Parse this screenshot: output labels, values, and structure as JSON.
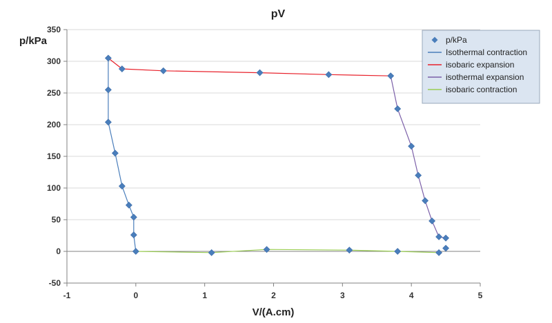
{
  "chart_data": {
    "type": "scatter",
    "title": "pV",
    "xlabel": "V/(A.cm)",
    "ylabel": "p/kPa",
    "xlim": [
      -1,
      5
    ],
    "ylim": [
      -50,
      350
    ],
    "x_ticks": [
      "-1",
      "0",
      "1",
      "2",
      "3",
      "4",
      "5"
    ],
    "y_ticks": [
      "-50",
      "0",
      "50",
      "100",
      "150",
      "200",
      "250",
      "300",
      "350"
    ],
    "grid": "horizontal",
    "legend_position": "top-right",
    "marker_color": "#4a7ebb",
    "points": {
      "name": "p/kPa",
      "x": [
        -0.4,
        -0.2,
        0.4,
        1.8,
        2.8,
        3.7,
        -0.4,
        -0.4,
        -0.3,
        -0.2,
        -0.1,
        -0.03,
        -0.03,
        0.0,
        1.1,
        1.9,
        3.1,
        3.8,
        4.4,
        4.5,
        4.5,
        4.4,
        4.3,
        4.2,
        4.1,
        4.0,
        3.8
      ],
      "y": [
        305,
        288,
        285,
        282,
        279,
        277,
        255,
        204,
        155,
        103,
        73,
        54,
        26,
        0,
        -2,
        3,
        2,
        0,
        -2,
        5,
        21,
        23,
        48,
        80,
        120,
        166,
        225
      ]
    },
    "series": [
      {
        "name": "Isothermal contraction",
        "color": "#4a7ebb",
        "x": [
          -0.4,
          -0.4,
          -0.4,
          -0.3,
          -0.2,
          -0.1,
          -0.03,
          -0.03,
          0.0
        ],
        "y": [
          305,
          255,
          204,
          155,
          103,
          73,
          54,
          26,
          0
        ]
      },
      {
        "name": "isobaric expansion",
        "color": "#e8202a",
        "x": [
          -0.4,
          -0.2,
          0.4,
          1.8,
          2.8,
          3.7
        ],
        "y": [
          305,
          288,
          285,
          282,
          279,
          277
        ]
      },
      {
        "name": "isothermal expansion",
        "color": "#7b5fa8",
        "x": [
          3.7,
          3.8,
          4.0,
          4.1,
          4.2,
          4.3,
          4.4,
          4.5
        ],
        "y": [
          277,
          225,
          166,
          120,
          80,
          48,
          23,
          21
        ]
      },
      {
        "name": "isobaric contraction",
        "color": "#9acd52",
        "x": [
          0.0,
          1.1,
          1.9,
          3.1,
          3.8,
          4.4
        ],
        "y": [
          0,
          -2,
          3,
          2,
          0,
          -2
        ]
      }
    ]
  }
}
